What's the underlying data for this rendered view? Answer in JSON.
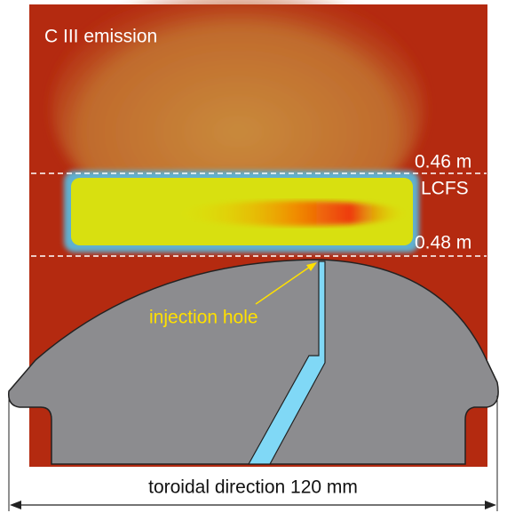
{
  "title": "C III emission",
  "labels": {
    "upper_surface": "0.46 m",
    "lcfs": "LCFS",
    "lower_surface": "0.48 m",
    "hole": "injection hole",
    "scale": "toroidal direction 120 mm"
  }
}
